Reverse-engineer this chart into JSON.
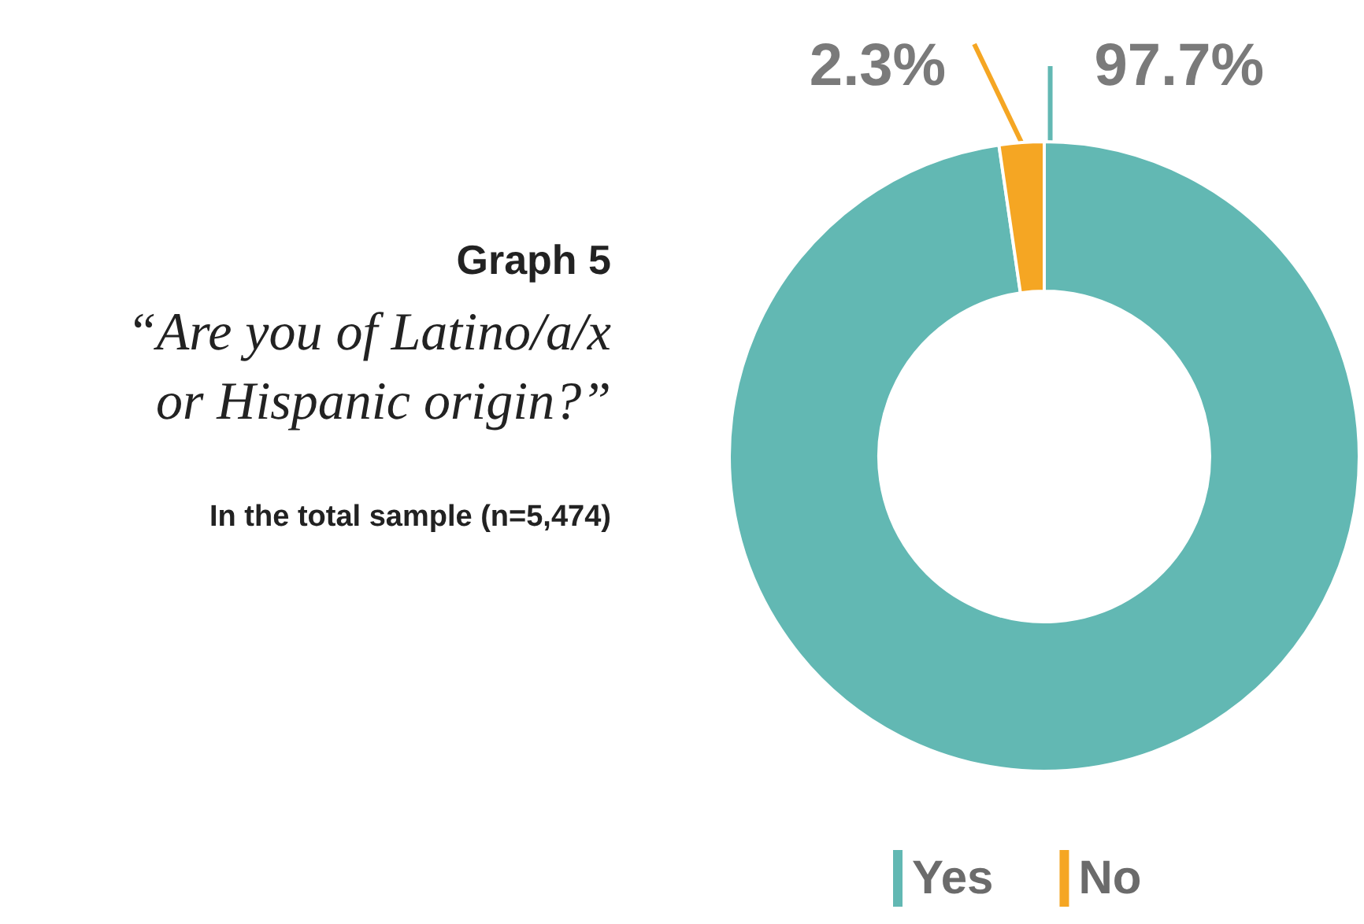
{
  "chart_data": {
    "type": "donut",
    "title": "Graph 5",
    "subtitle": "“Are you of Latino/a/x\nor Hispanic origin?”",
    "annotations": [
      "In the total sample (n=5,474)"
    ],
    "categories": [
      "Yes",
      "No"
    ],
    "values": [
      97.7,
      2.3
    ],
    "colors": [
      "#62b8b3",
      "#f5a623"
    ],
    "value_labels": [
      "97.7%",
      "2.3%"
    ],
    "legend": "bottom"
  }
}
